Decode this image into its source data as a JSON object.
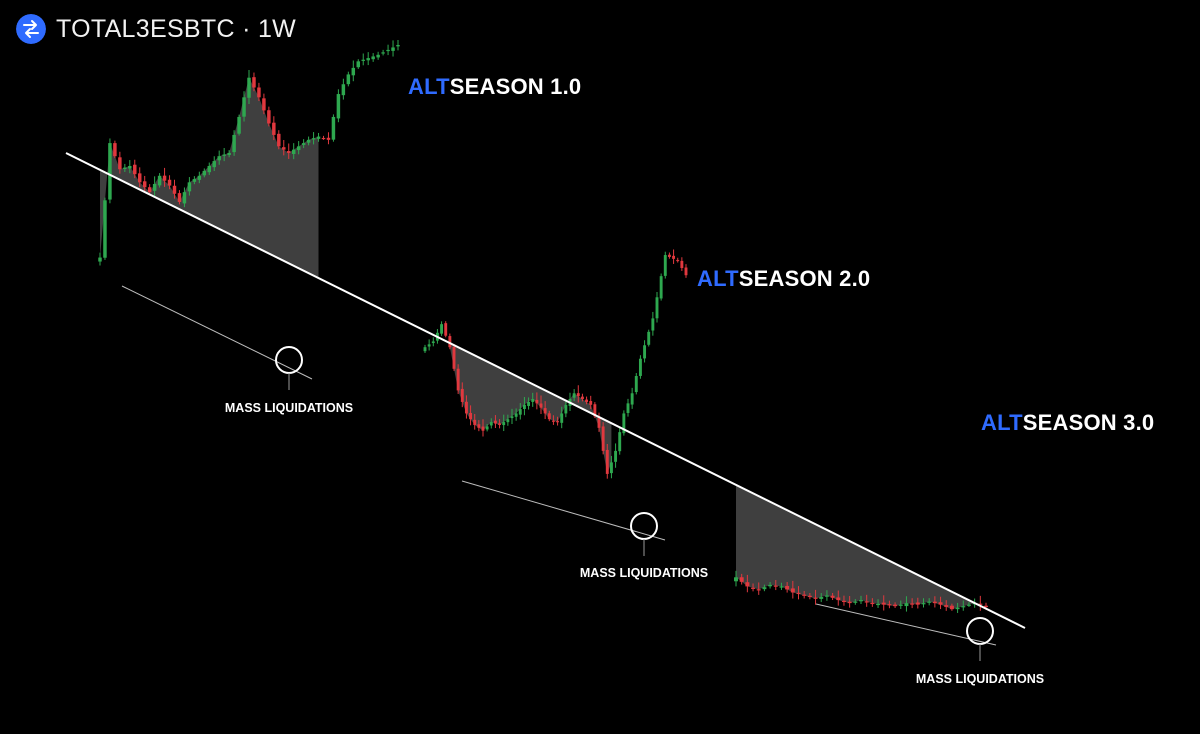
{
  "header": {
    "ticker": "TOTAL3ESBTC",
    "separator": "·",
    "interval": "1W",
    "logo_icon": "swap-arrows-logo-icon",
    "logo_color": "#2f6bff"
  },
  "seasons": [
    {
      "alt": "ALT",
      "rest": "SEASON 1.0"
    },
    {
      "alt": "ALT",
      "rest": "SEASON 2.0"
    },
    {
      "alt": "ALT",
      "rest": "SEASON 3.0"
    }
  ],
  "liquidations": [
    {
      "label": "MASS LIQUIDATIONS"
    },
    {
      "label": "MASS LIQUIDATIONS"
    },
    {
      "label": "MASS LIQUIDATIONS"
    }
  ],
  "colors": {
    "background": "#000000",
    "up": "#2ea84f",
    "down": "#e0383e",
    "accent": "#2f6bff",
    "trendline": "#ffffff",
    "fill": "#4a4a4a"
  },
  "chart_data": {
    "type": "candlestick",
    "symbol": "TOTAL3ESBTC",
    "interval": "1W",
    "axes_visible": false,
    "annotations": [
      "descending resistance trendline",
      "support lines",
      "gray shaded wedges",
      "circled lows"
    ],
    "close_path": [
      [
        0,
        0.35
      ],
      [
        2,
        0.7
      ],
      [
        4,
        0.62
      ],
      [
        6,
        0.63
      ],
      [
        8,
        0.58
      ],
      [
        10,
        0.55
      ],
      [
        12,
        0.6
      ],
      [
        14,
        0.57
      ],
      [
        16,
        0.52
      ],
      [
        18,
        0.58
      ],
      [
        20,
        0.6
      ],
      [
        22,
        0.63
      ],
      [
        24,
        0.66
      ],
      [
        26,
        0.67
      ],
      [
        28,
        0.78
      ],
      [
        30,
        0.9
      ],
      [
        32,
        0.84
      ],
      [
        34,
        0.76
      ],
      [
        36,
        0.69
      ],
      [
        38,
        0.67
      ],
      [
        40,
        0.69
      ],
      [
        42,
        0.71
      ],
      [
        44,
        0.72
      ],
      [
        46,
        0.71
      ],
      [
        48,
        0.85
      ],
      [
        50,
        0.91
      ],
      [
        52,
        0.95
      ],
      [
        56,
        0.97
      ],
      [
        60,
        1.0
      ],
      [
        61,
        0.6
      ],
      [
        63,
        0.62
      ],
      [
        65,
        0.68
      ],
      [
        67,
        0.6
      ],
      [
        69,
        0.45
      ],
      [
        71,
        0.37
      ],
      [
        73,
        0.33
      ],
      [
        75,
        0.31
      ],
      [
        77,
        0.34
      ],
      [
        79,
        0.33
      ],
      [
        81,
        0.35
      ],
      [
        83,
        0.37
      ],
      [
        85,
        0.4
      ],
      [
        87,
        0.42
      ],
      [
        89,
        0.39
      ],
      [
        91,
        0.35
      ],
      [
        93,
        0.34
      ],
      [
        95,
        0.4
      ],
      [
        97,
        0.44
      ],
      [
        99,
        0.42
      ],
      [
        101,
        0.4
      ],
      [
        103,
        0.32
      ],
      [
        105,
        0.16
      ],
      [
        107,
        0.24
      ],
      [
        109,
        0.37
      ],
      [
        111,
        0.44
      ],
      [
        113,
        0.56
      ],
      [
        116,
        0.7
      ],
      [
        119,
        0.92
      ],
      [
        122,
        0.9
      ],
      [
        124,
        0.85
      ],
      [
        125,
        0.36
      ],
      [
        127,
        0.3
      ],
      [
        129,
        0.28
      ],
      [
        131,
        0.31
      ],
      [
        133,
        0.3
      ],
      [
        135,
        0.26
      ],
      [
        137,
        0.24
      ],
      [
        139,
        0.22
      ],
      [
        141,
        0.24
      ],
      [
        143,
        0.21
      ],
      [
        145,
        0.19
      ],
      [
        147,
        0.21
      ],
      [
        149,
        0.19
      ],
      [
        151,
        0.18
      ],
      [
        153,
        0.17
      ],
      [
        155,
        0.19
      ],
      [
        157,
        0.18
      ],
      [
        159,
        0.2
      ],
      [
        161,
        0.18
      ],
      [
        163,
        0.15
      ],
      [
        165,
        0.17
      ],
      [
        167,
        0.19
      ],
      [
        169,
        0.17
      ]
    ]
  }
}
